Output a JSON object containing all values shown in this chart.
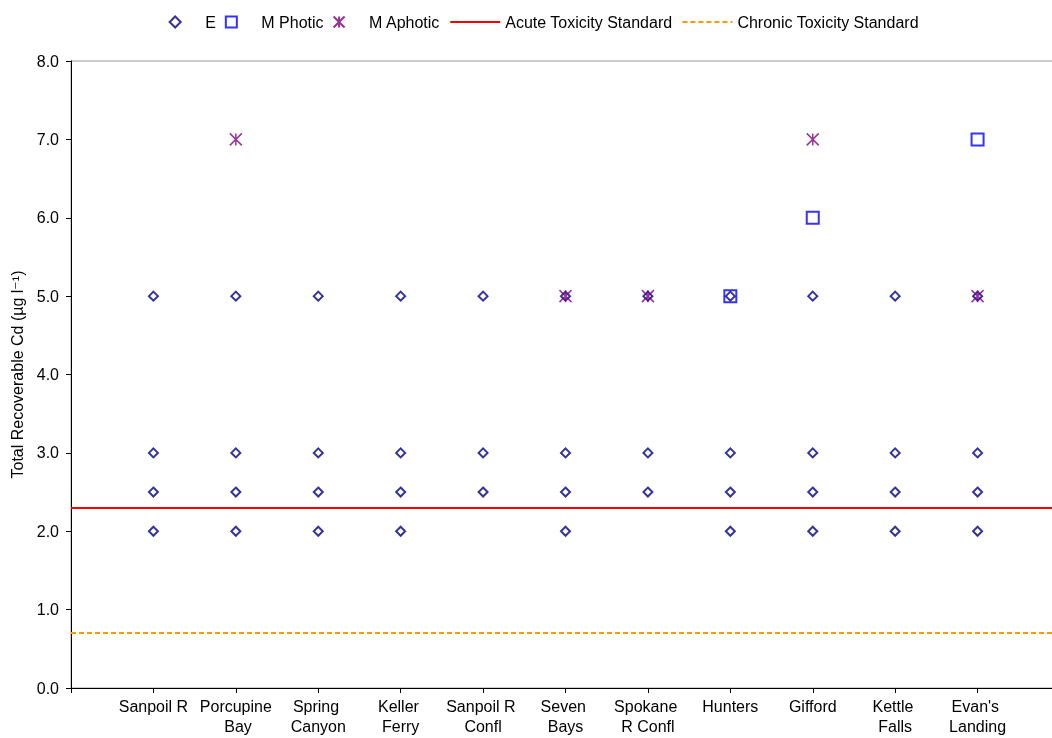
{
  "chart_data": {
    "type": "scatter",
    "categories": [
      "Sanpoil R",
      "Porcupine Bay",
      "Spring Canyon",
      "Keller Ferry",
      "Sanpoil R Confl",
      "Seven Bays",
      "Spokane R Confl",
      "Hunters",
      "Gifford",
      "Kettle Falls",
      "Evan's Landing"
    ],
    "ylabel": "Total Recoverable Cd (µg l⁻¹)",
    "ylim": [
      0,
      8
    ],
    "yticks": [
      {
        "value": 0,
        "label": "0.0"
      },
      {
        "value": 1,
        "label": "1.0"
      },
      {
        "value": 2,
        "label": "2.0"
      },
      {
        "value": 3,
        "label": "3.0"
      },
      {
        "value": 4,
        "label": "4.0"
      },
      {
        "value": 5,
        "label": "5.0"
      },
      {
        "value": 6,
        "label": "6.0"
      },
      {
        "value": 7,
        "label": "7.0"
      },
      {
        "value": 8,
        "label": "8.0"
      }
    ],
    "series": [
      {
        "name": "E",
        "color": "#000080",
        "marker": "diamond",
        "x": [
          "Sanpoil R",
          "Sanpoil R",
          "Sanpoil R",
          "Sanpoil R",
          "Porcupine Bay",
          "Porcupine Bay",
          "Porcupine Bay",
          "Porcupine Bay",
          "Spring Canyon",
          "Spring Canyon",
          "Spring Canyon",
          "Spring Canyon",
          "Keller Ferry",
          "Keller Ferry",
          "Keller Ferry",
          "Keller Ferry",
          "Sanpoil R Confl",
          "Sanpoil R Confl",
          "Sanpoil R Confl",
          "Seven Bays",
          "Seven Bays",
          "Seven Bays",
          "Seven Bays",
          "Spokane R Confl",
          "Spokane R Confl",
          "Spokane R Confl",
          "Hunters",
          "Hunters",
          "Hunters",
          "Hunters",
          "Gifford",
          "Gifford",
          "Gifford",
          "Gifford",
          "Kettle Falls",
          "Kettle Falls",
          "Kettle Falls",
          "Kettle Falls",
          "Evan's Landing",
          "Evan's Landing",
          "Evan's Landing",
          "Evan's Landing"
        ],
        "values": [
          5,
          3,
          2.5,
          2,
          5,
          3,
          2.5,
          2,
          5,
          3,
          2.5,
          2,
          5,
          3,
          2.5,
          2,
          5,
          3,
          2.5,
          5,
          3,
          2.5,
          2,
          5,
          3,
          2.5,
          5,
          3,
          2.5,
          2,
          5,
          3,
          2.5,
          2,
          5,
          3,
          2.5,
          2,
          5,
          3,
          2.5,
          2
        ]
      },
      {
        "name": "M Photic",
        "color": "#0000ff",
        "marker": "square",
        "x": [
          "Hunters",
          "Gifford",
          "Evan's Landing"
        ],
        "values": [
          5,
          6,
          7
        ]
      },
      {
        "name": "M Aphotic",
        "color": "#800080",
        "marker": "cross",
        "x": [
          "Porcupine Bay",
          "Seven Bays",
          "Spokane R Confl",
          "Gifford",
          "Evan's Landing"
        ],
        "values": [
          7,
          5,
          5,
          7,
          5
        ]
      }
    ],
    "ref_lines": [
      {
        "axis": "y",
        "value": 2.3,
        "label": "Acute Toxicity Standard",
        "color": "#ff0000",
        "line_style": "solid"
      },
      {
        "axis": "y",
        "value": 0.7,
        "label": "Chronic Toxicity Standard",
        "color": "#ff9900",
        "line_style": "dashed"
      }
    ],
    "legend": "top"
  }
}
